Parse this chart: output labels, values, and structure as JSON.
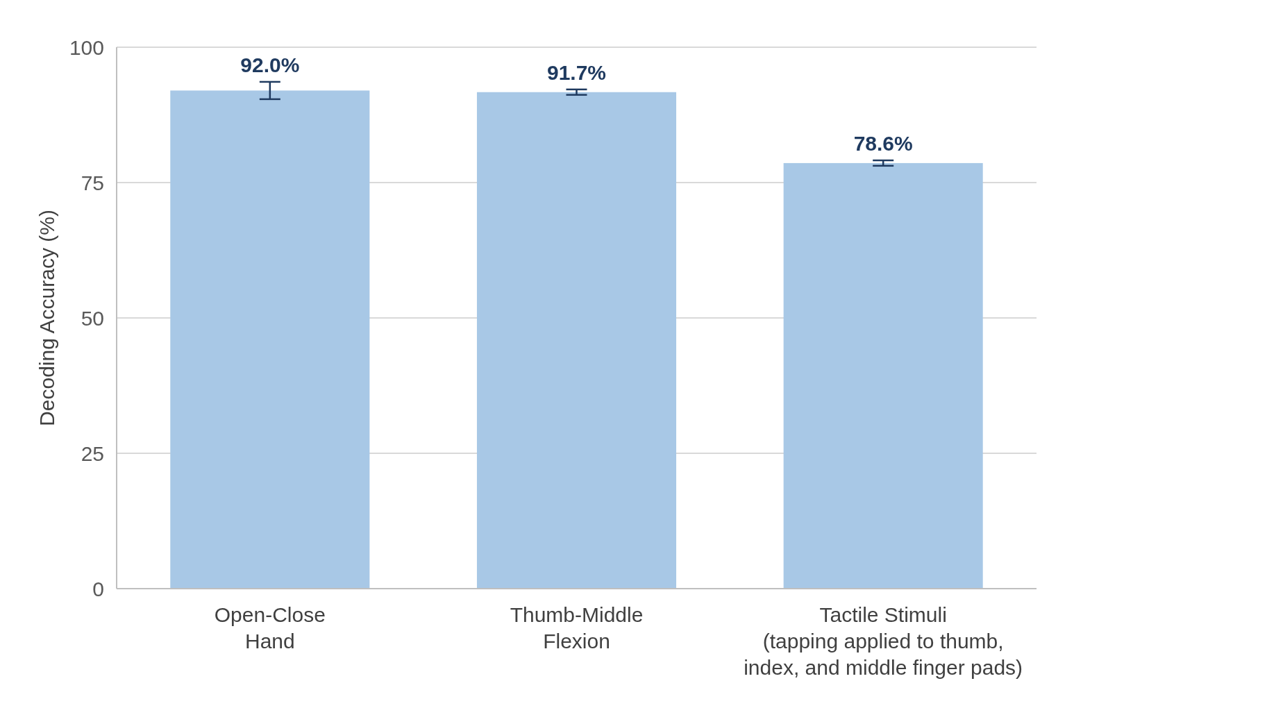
{
  "chart_data": {
    "type": "bar",
    "ylabel": "Decoding Accuracy (%)",
    "categories": [
      "Open-Close\nHand",
      "Thumb-Middle\nFlexion",
      "Tactile Stimuli\n(tapping applied to thumb,\nindex, and middle finger pads)"
    ],
    "values": [
      92.0,
      91.7,
      78.6
    ],
    "errors": [
      1.6,
      0.5,
      0.5
    ],
    "value_labels": [
      "92.0%",
      "91.7%",
      "78.6%"
    ],
    "color": "#a8c8e6",
    "ylim": [
      0,
      100
    ],
    "yticks": [
      0,
      25,
      50,
      75,
      100
    ],
    "grid": "y"
  }
}
